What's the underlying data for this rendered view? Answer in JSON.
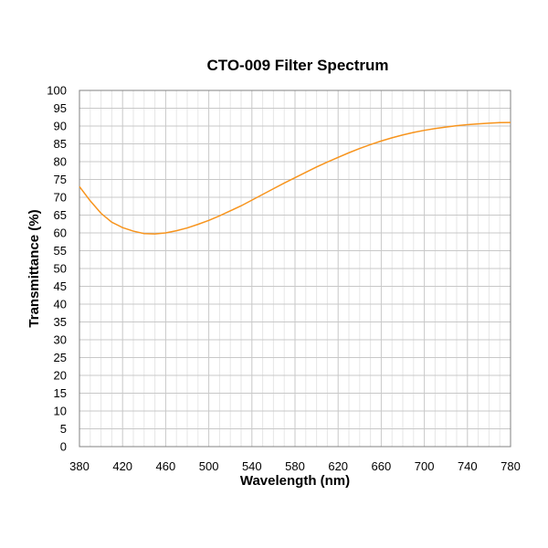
{
  "chart_data": {
    "type": "line",
    "title": "CTO-009 Filter Spectrum",
    "xlabel": "Wavelength (nm)",
    "ylabel": "Transmittance (%)",
    "xlim": [
      380,
      780
    ],
    "ylim": [
      0,
      100
    ],
    "x_ticks": [
      380,
      420,
      460,
      500,
      540,
      580,
      620,
      660,
      700,
      740,
      780
    ],
    "y_ticks": [
      0,
      5,
      10,
      15,
      20,
      25,
      30,
      35,
      40,
      45,
      50,
      55,
      60,
      65,
      70,
      75,
      80,
      85,
      90,
      95,
      100
    ],
    "grid": true,
    "legend": "none",
    "series": [
      {
        "color": "#f7941d",
        "x": [
          380,
          390,
          400,
          410,
          420,
          430,
          440,
          450,
          460,
          470,
          480,
          490,
          500,
          510,
          520,
          530,
          540,
          550,
          560,
          570,
          580,
          590,
          600,
          610,
          620,
          630,
          640,
          650,
          660,
          670,
          680,
          690,
          700,
          710,
          720,
          730,
          740,
          750,
          760,
          770,
          780
        ],
        "y": [
          73,
          69,
          65.5,
          63,
          61.5,
          60.5,
          59.8,
          59.7,
          60,
          60.6,
          61.4,
          62.4,
          63.5,
          64.8,
          66.2,
          67.6,
          69.2,
          70.8,
          72.4,
          74,
          75.5,
          77,
          78.5,
          79.9,
          81.2,
          82.5,
          83.7,
          84.8,
          85.8,
          86.7,
          87.5,
          88.2,
          88.8,
          89.3,
          89.7,
          90.1,
          90.4,
          90.6,
          90.8,
          90.95,
          91
        ]
      }
    ]
  }
}
